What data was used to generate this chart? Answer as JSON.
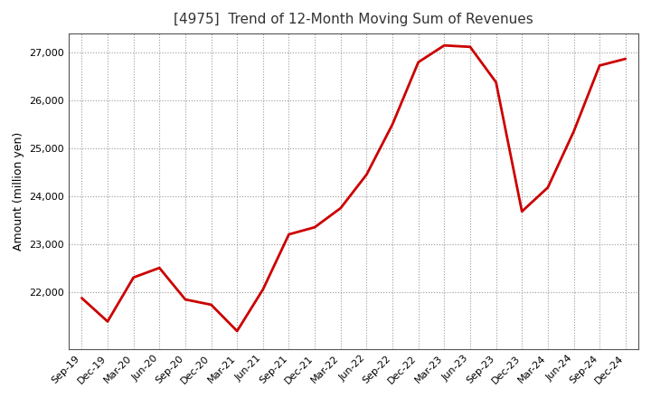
{
  "title": "[4975]  Trend of 12-Month Moving Sum of Revenues",
  "ylabel": "Amount (million yen)",
  "line_color": "#cc0000",
  "background_color": "#ffffff",
  "plot_bg_color": "#ffffff",
  "grid_color": "#999999",
  "ylim": [
    20800,
    27400
  ],
  "yticks": [
    22000,
    23000,
    24000,
    25000,
    26000,
    27000
  ],
  "labels": [
    "Sep-19",
    "Dec-19",
    "Mar-20",
    "Jun-20",
    "Sep-20",
    "Dec-20",
    "Mar-21",
    "Jun-21",
    "Sep-21",
    "Dec-21",
    "Mar-22",
    "Jun-22",
    "Sep-22",
    "Dec-22",
    "Mar-23",
    "Jun-23",
    "Sep-23",
    "Dec-23",
    "Mar-24",
    "Jun-24",
    "Sep-24",
    "Dec-24"
  ],
  "values": [
    21870,
    21380,
    22300,
    22500,
    21840,
    21730,
    21180,
    22050,
    23200,
    23350,
    23750,
    24450,
    25500,
    26800,
    27150,
    27120,
    26380,
    23680,
    24180,
    25350,
    26730,
    26870
  ],
  "figsize": [
    7.2,
    4.4
  ],
  "dpi": 100,
  "title_fontsize": 11,
  "ylabel_fontsize": 9,
  "tick_fontsize": 8
}
